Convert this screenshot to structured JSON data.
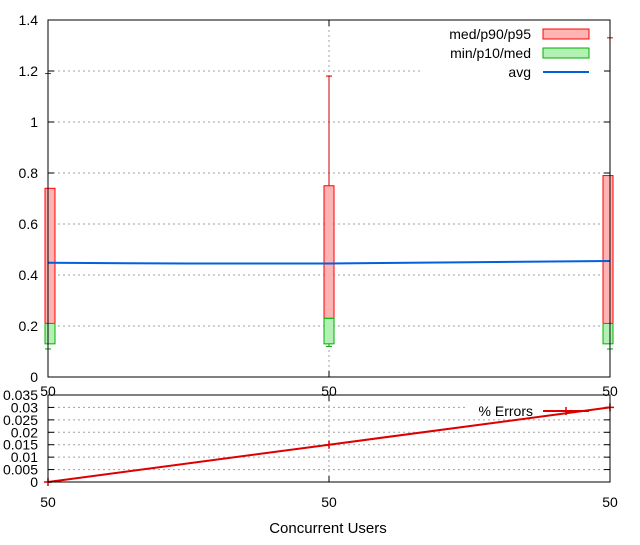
{
  "chart_data": [
    {
      "type": "box",
      "x_categories": [
        "50",
        "50",
        "50"
      ],
      "ylim": [
        0,
        1.4
      ],
      "yticks": [
        "0",
        "0.2",
        "0.4",
        "0.6",
        "0.8",
        "1",
        "1.2",
        "1.4"
      ],
      "grid": true,
      "legend_position": "top-right",
      "legend": [
        "med/p90/p95",
        "min/p10/med",
        "avg"
      ],
      "colors": {
        "upper_box_fill": "#ffb3b3",
        "upper_box_stroke": "#ff0000",
        "lower_box_fill": "#b3f0b3",
        "lower_box_stroke": "#00b000",
        "avg_line": "#0060e0",
        "whisker": "#cc0000"
      },
      "boxes": [
        {
          "x": 0,
          "min": 0.11,
          "p10": 0.13,
          "med": 0.21,
          "p90": 0.74,
          "p95": 1.19
        },
        {
          "x": 1,
          "min": 0.12,
          "p10": 0.13,
          "med": 0.23,
          "p90": 0.75,
          "p95": 1.18
        },
        {
          "x": 2,
          "min": 0.11,
          "p10": 0.13,
          "med": 0.21,
          "p90": 0.79,
          "p95": 1.33
        }
      ],
      "avg": [
        {
          "x": 0,
          "y": 0.448
        },
        {
          "x": 0.5,
          "y": 0.445
        },
        {
          "x": 1,
          "y": 0.445
        },
        {
          "x": 1.5,
          "y": 0.45
        },
        {
          "x": 2,
          "y": 0.455
        }
      ]
    },
    {
      "type": "line",
      "x_categories": [
        "50",
        "50",
        "50"
      ],
      "xlabel": "Concurrent Users",
      "ylim": [
        0,
        0.035
      ],
      "yticks": [
        "0",
        "0.005",
        "0.01",
        "0.015",
        "0.02",
        "0.025",
        "0.03",
        "0.035"
      ],
      "grid": true,
      "legend_position": "top-right",
      "series": [
        {
          "name": "% Errors",
          "color": "#dd0000",
          "x": [
            0,
            1,
            2
          ],
          "y": [
            0,
            0.015,
            0.03
          ]
        }
      ]
    }
  ]
}
